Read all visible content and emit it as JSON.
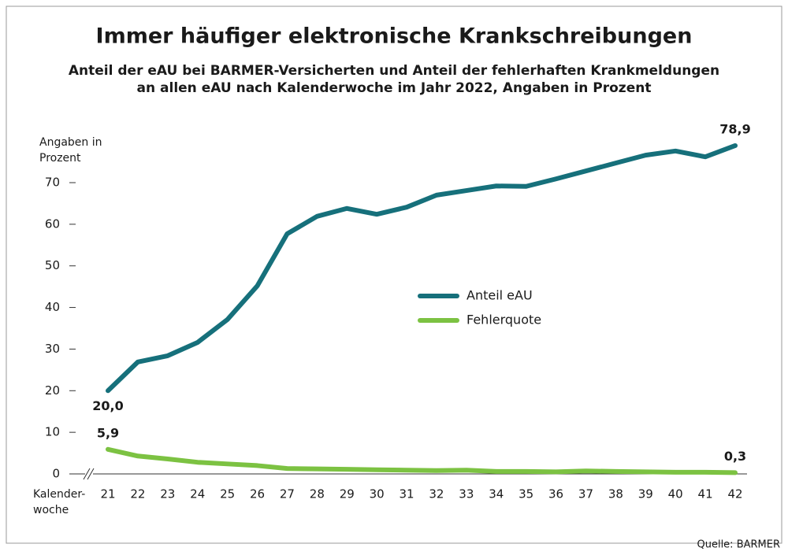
{
  "chart_data": {
    "type": "line",
    "title": "Immer häufiger elektronische Krankschreibungen",
    "subtitle": "Anteil der eAU bei BARMER-Versicherten und Anteil der fehlerhaften Krankmeldungen\nan allen eAU nach Kalenderwoche im Jahr 2022, Angaben in Prozent",
    "y_label": "Angaben in\nProzent",
    "x_label": "Kalender-\nwoche",
    "source": "Quelle: BARMER",
    "categories": [
      "21",
      "22",
      "23",
      "24",
      "25",
      "26",
      "27",
      "28",
      "29",
      "30",
      "31",
      "32",
      "33",
      "34",
      "35",
      "36",
      "37",
      "38",
      "39",
      "40",
      "41",
      "42"
    ],
    "series": [
      {
        "name": "Anteil eAU",
        "color": "#16707b",
        "values": [
          20.0,
          26.9,
          28.4,
          31.6,
          37.1,
          45.2,
          57.7,
          61.9,
          63.8,
          62.4,
          64.1,
          67.0,
          68.1,
          69.2,
          69.1,
          70.9,
          72.8,
          74.7,
          76.6,
          77.6,
          76.2,
          78.9
        ],
        "value_labels": [
          "20,0",
          null,
          null,
          null,
          null,
          null,
          null,
          null,
          null,
          null,
          null,
          null,
          null,
          null,
          null,
          null,
          null,
          null,
          null,
          null,
          null,
          "78,9"
        ]
      },
      {
        "name": "Fehlerquote",
        "color": "#7cc242",
        "values": [
          5.9,
          4.3,
          3.6,
          2.8,
          2.4,
          2.0,
          1.3,
          1.2,
          1.1,
          1.0,
          0.9,
          0.8,
          0.9,
          0.6,
          0.6,
          0.5,
          0.7,
          0.6,
          0.5,
          0.4,
          0.4,
          0.3
        ],
        "value_labels": [
          "5,9",
          null,
          null,
          null,
          null,
          null,
          null,
          null,
          null,
          null,
          null,
          null,
          null,
          null,
          null,
          null,
          null,
          null,
          null,
          null,
          null,
          "0,3"
        ]
      }
    ],
    "ylim": [
      0,
      80
    ],
    "yticks": [
      0,
      10,
      20,
      30,
      40,
      50,
      60,
      70
    ],
    "grid": false
  }
}
